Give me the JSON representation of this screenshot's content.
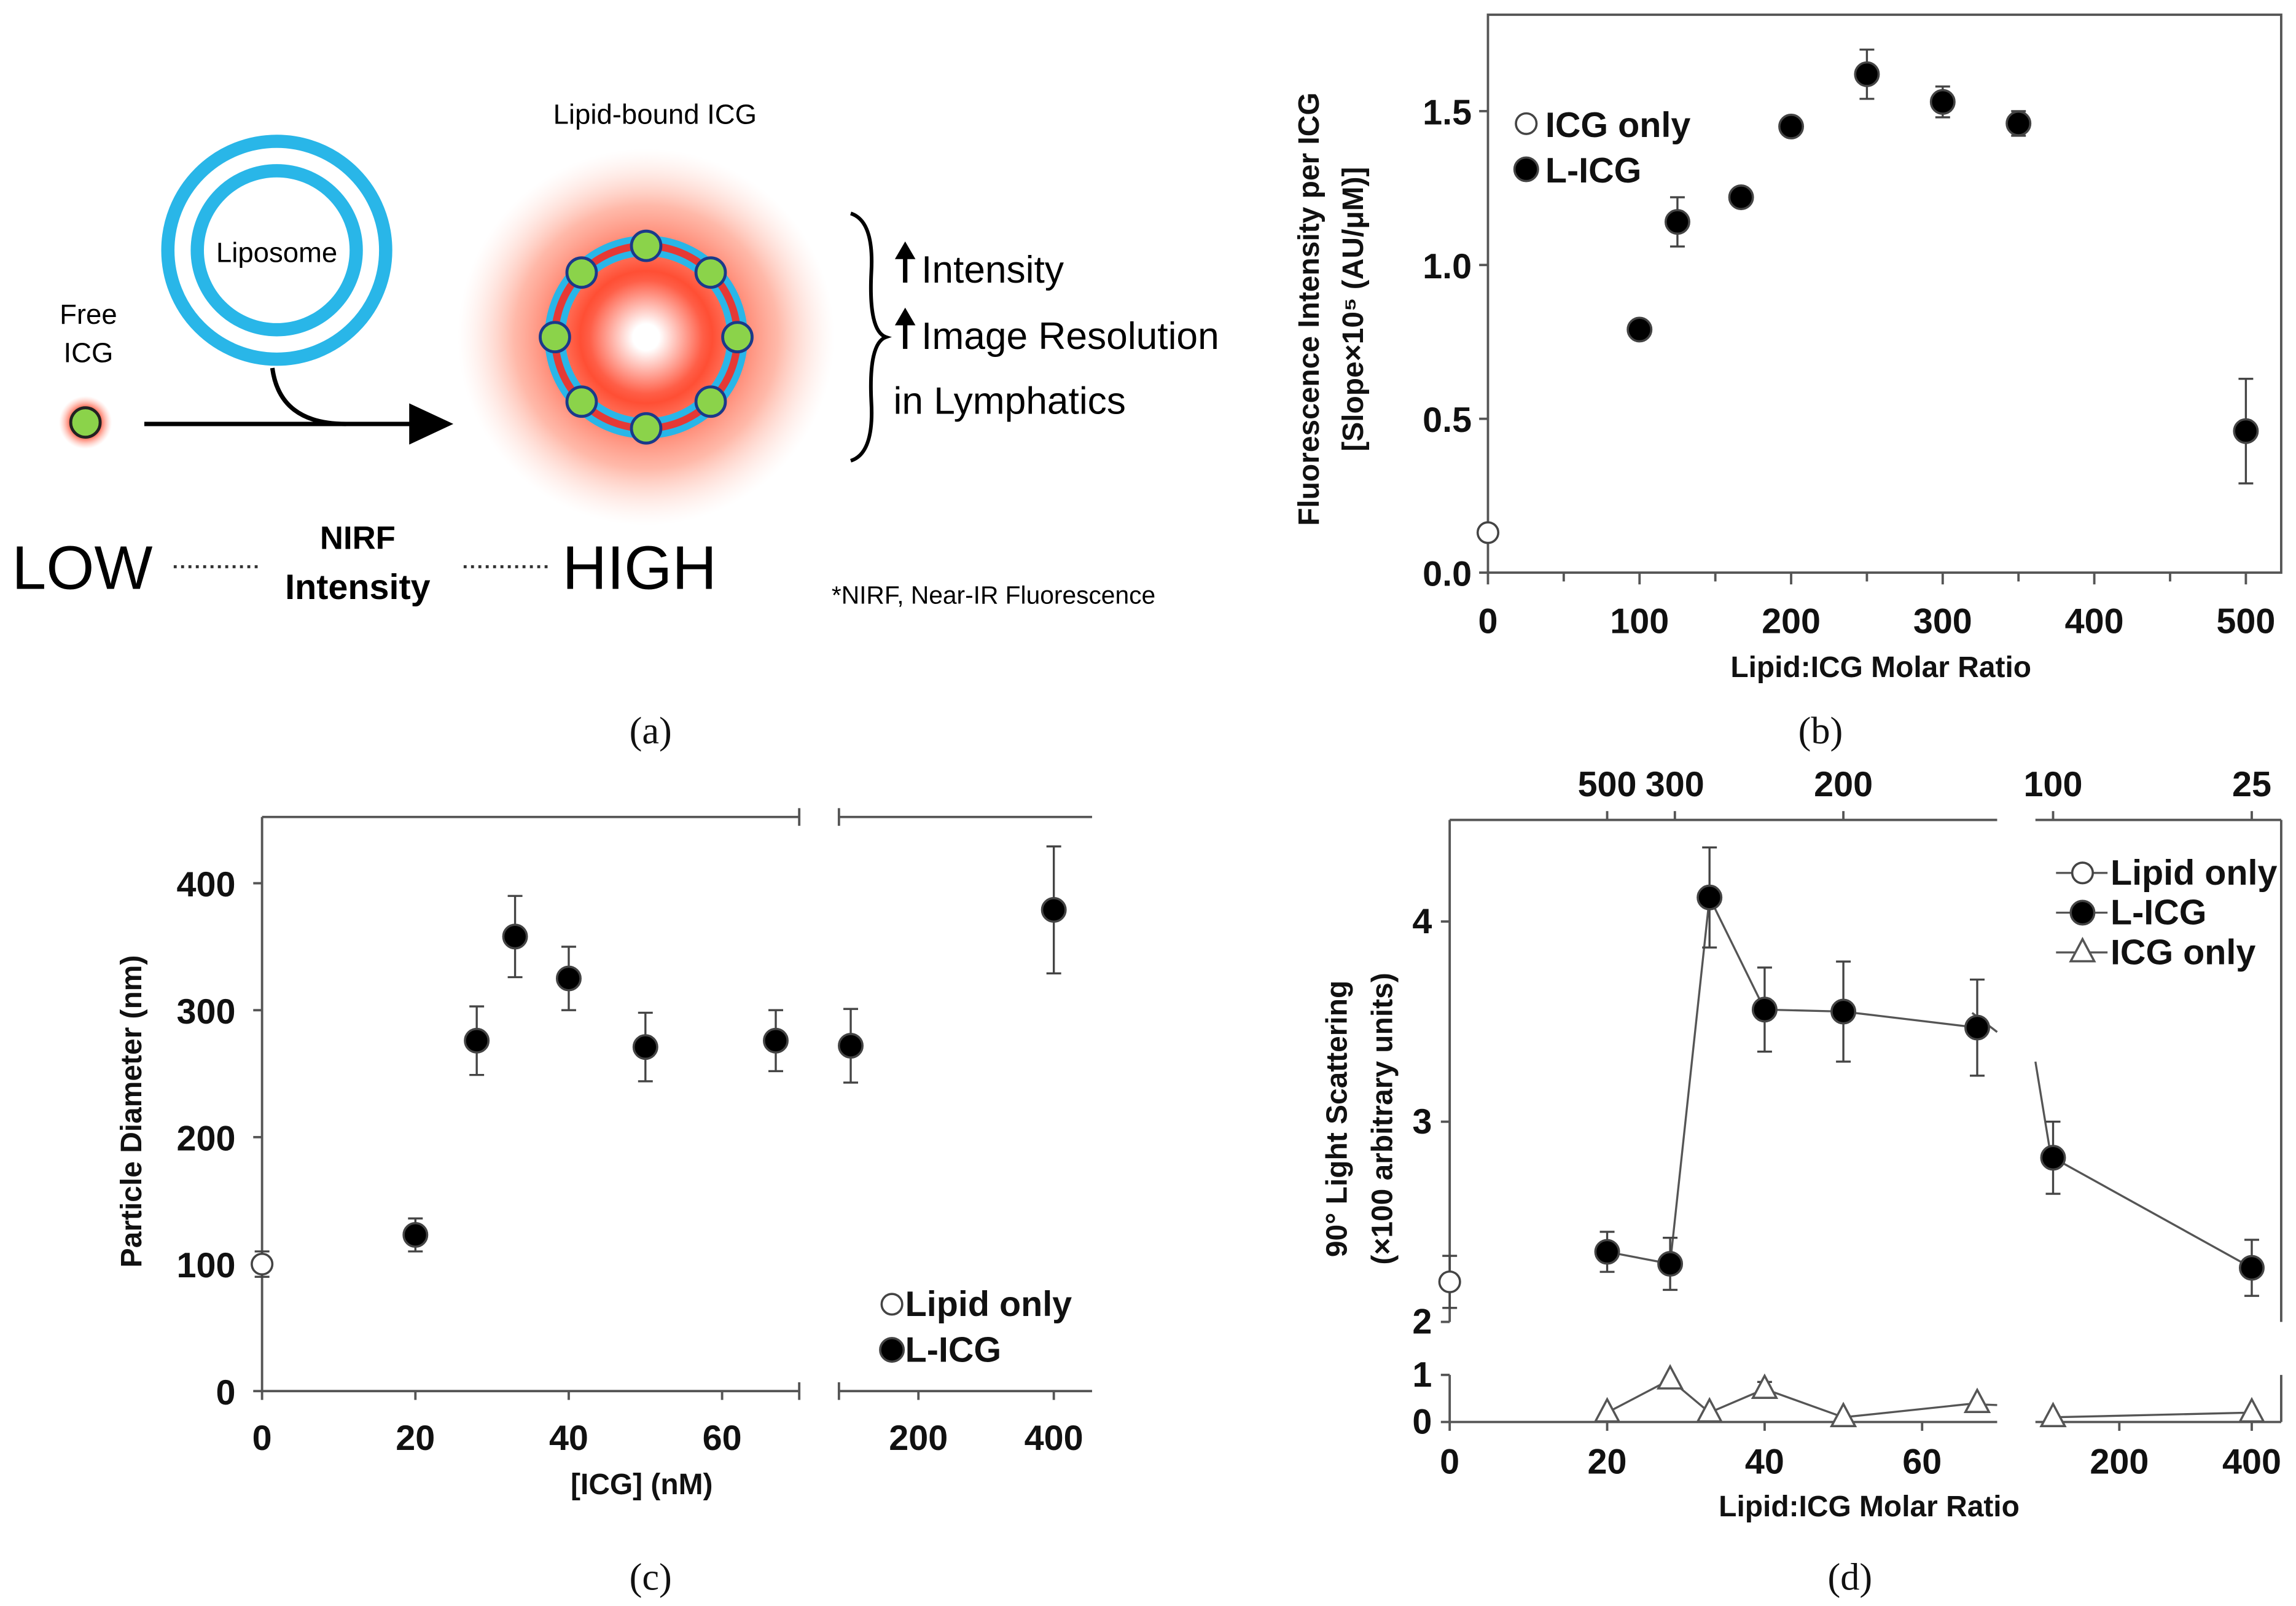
{
  "captions": {
    "a": "(a)",
    "b": "(b)",
    "c": "(c)",
    "d": "(d)"
  },
  "diagram": {
    "lipid_bound": "Lipid-bound ICG",
    "liposome": "Liposome",
    "free": "Free",
    "icg": "ICG",
    "intensity": "Intensity",
    "resolution": "Image Resolution",
    "lymph": "in Lymphatics",
    "low": "LOW",
    "high": "HIGH",
    "nirf": "NIRF",
    "nirf_int": "Intensity",
    "footnote": "*NIRF, Near-IR Fluorescence",
    "colors": {
      "liposome": "#29b6e8",
      "ring": "#e53935",
      "glow": "#ff5a3c",
      "dot": "#8bd34a"
    }
  },
  "chart_data": [
    {
      "id": "b",
      "type": "scatter",
      "xlabel": "Lipid:ICG Molar Ratio",
      "ylabel": "Fluorescence Intensity per ICG",
      "ylabel2": "[Slope×10⁵ (AU/μM)]",
      "xticks": [
        "0",
        "100",
        "200",
        "300",
        "400",
        "500"
      ],
      "yticks": [
        "0.0",
        "0.5",
        "1.0",
        "1.5"
      ],
      "xlim": [
        0,
        520
      ],
      "ylim": [
        0,
        1.8
      ],
      "legend": [
        "ICG only",
        "L-ICG"
      ],
      "legend_position": "top-left",
      "series": [
        {
          "name": "ICG only",
          "marker": "open-circle",
          "x": [
            0
          ],
          "y": [
            0.13
          ],
          "err": [
            0
          ]
        },
        {
          "name": "L-ICG",
          "marker": "filled-circle",
          "x": [
            100,
            125,
            167,
            200,
            250,
            300,
            350,
            500
          ],
          "y": [
            0.79,
            1.14,
            1.22,
            1.45,
            1.62,
            1.53,
            1.46,
            0.46
          ],
          "err": [
            0.03,
            0.08,
            0.02,
            0.01,
            0.08,
            0.05,
            0.04,
            0.17
          ]
        }
      ]
    },
    {
      "id": "c",
      "type": "scatter",
      "xlabel": "[ICG] (nM)",
      "ylabel": "Particle Diameter (nm)",
      "xticks": [
        "0",
        "20",
        "40",
        "60",
        "200",
        "400"
      ],
      "yticks": [
        "0",
        "100",
        "200",
        "300",
        "400"
      ],
      "ylim": [
        0,
        450
      ],
      "x_break": [
        70,
        100
      ],
      "legend": [
        "Lipid only",
        "L-ICG"
      ],
      "legend_position": "bottom-right",
      "series": [
        {
          "name": "Lipid only",
          "marker": "open-circle",
          "x": [
            0
          ],
          "y": [
            100
          ],
          "err": [
            10
          ]
        },
        {
          "name": "L-ICG",
          "marker": "filled-circle",
          "x": [
            20,
            28,
            33,
            40,
            50,
            67,
            100,
            400
          ],
          "y": [
            123,
            276,
            358,
            325,
            271,
            276,
            272,
            379
          ],
          "err": [
            13,
            27,
            32,
            25,
            27,
            24,
            29,
            50
          ]
        }
      ]
    },
    {
      "id": "d",
      "type": "line",
      "xlabel": "Lipid:ICG Molar Ratio",
      "ylabel": "90° Light Scattering",
      "ylabel2": "(×100 arbitrary units)",
      "xticks": [
        "0",
        "20",
        "40",
        "60",
        "200",
        "400"
      ],
      "top_ticks": [
        "500",
        "300",
        "200",
        "100",
        "25"
      ],
      "yticks": [
        "0",
        "1",
        "2",
        "3",
        "4"
      ],
      "x_break": [
        70,
        100
      ],
      "y_break": [
        1,
        2
      ],
      "legend": [
        "Lipid only",
        "L-ICG",
        "ICG only"
      ],
      "legend_position": "top-right",
      "series": [
        {
          "name": "Lipid only",
          "marker": "open-circle",
          "x": [
            0
          ],
          "y": [
            2.2
          ],
          "err": [
            0.13
          ]
        },
        {
          "name": "L-ICG",
          "marker": "filled-circle",
          "x": [
            20,
            28,
            33,
            40,
            50,
            67,
            100,
            400
          ],
          "y": [
            2.35,
            2.29,
            4.12,
            3.56,
            3.55,
            3.47,
            2.82,
            2.27
          ],
          "err": [
            0.1,
            0.13,
            0.25,
            0.21,
            0.25,
            0.24,
            0.18,
            0.14
          ]
        },
        {
          "name": "ICG only",
          "marker": "open-triangle",
          "x": [
            20,
            28,
            33,
            40,
            50,
            67,
            100,
            400
          ],
          "y": [
            0.2,
            0.9,
            0.2,
            0.7,
            0.1,
            0.4,
            0.1,
            0.2
          ],
          "err": [
            0,
            0,
            0,
            0.15,
            0,
            0,
            0,
            0
          ]
        }
      ]
    }
  ]
}
